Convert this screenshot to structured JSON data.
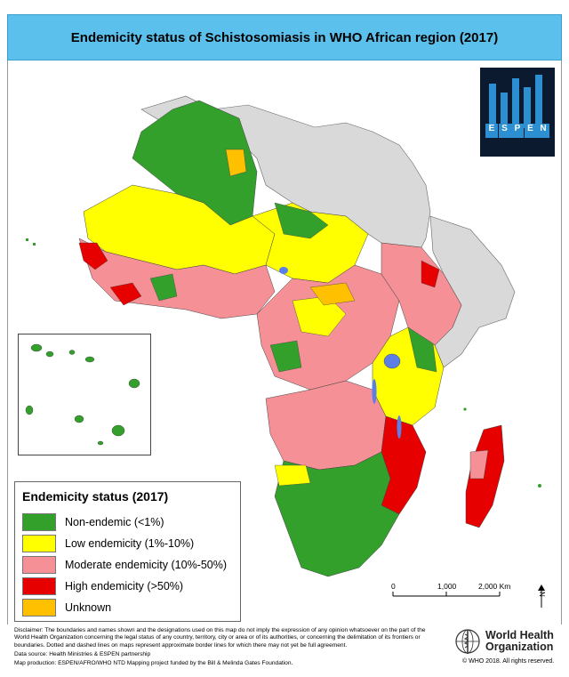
{
  "title": "Endemicity status of Schistosomiasis in WHO African region (2017)",
  "legend": {
    "title": "Endemicity status (2017)",
    "items": [
      {
        "label": "Non-endemic (<1%)",
        "color": "#33a02c"
      },
      {
        "label": "Low endemicity (1%-10%)",
        "color": "#ffff00"
      },
      {
        "label": "Moderate endemicity (10%-50%)",
        "color": "#f59097"
      },
      {
        "label": "High endemicity (>50%)",
        "color": "#e60000"
      },
      {
        "label": "Unknown",
        "color": "#ffc000"
      }
    ]
  },
  "colors": {
    "non_african_region": "#d9d9d9",
    "water": "#5b7fe6",
    "title_bg": "#5bc0eb"
  },
  "scale_bar": {
    "tick_labels": [
      "0",
      "1,000",
      "2,000 Km"
    ]
  },
  "logo": {
    "espen_letters": [
      "E",
      "S",
      "P",
      "E",
      "N"
    ]
  },
  "disclaimer": [
    "Disclaimer: The boundaries and names shown and the designations used on this map do not imply the expression of any opinion whatsoever on the part of the World Health Organization concerning the legal status of any country, territory, city or area or of its authorities, or concerning the delimitation of its frontiers or boundaries. Dotted and dashed lines on maps represent approximate border lines for which there may not yet be full agreement.",
    "Data source: Health Ministries & ESPEN partnership",
    "Map production: ESPEN/AFRO/WHO NTD Mapping project funded by the Bill & Melinda Gates Foundation."
  ],
  "who": {
    "name_line1": "World Health",
    "name_line2": "Organization",
    "copyright": "© WHO 2018. All rights reserved."
  }
}
